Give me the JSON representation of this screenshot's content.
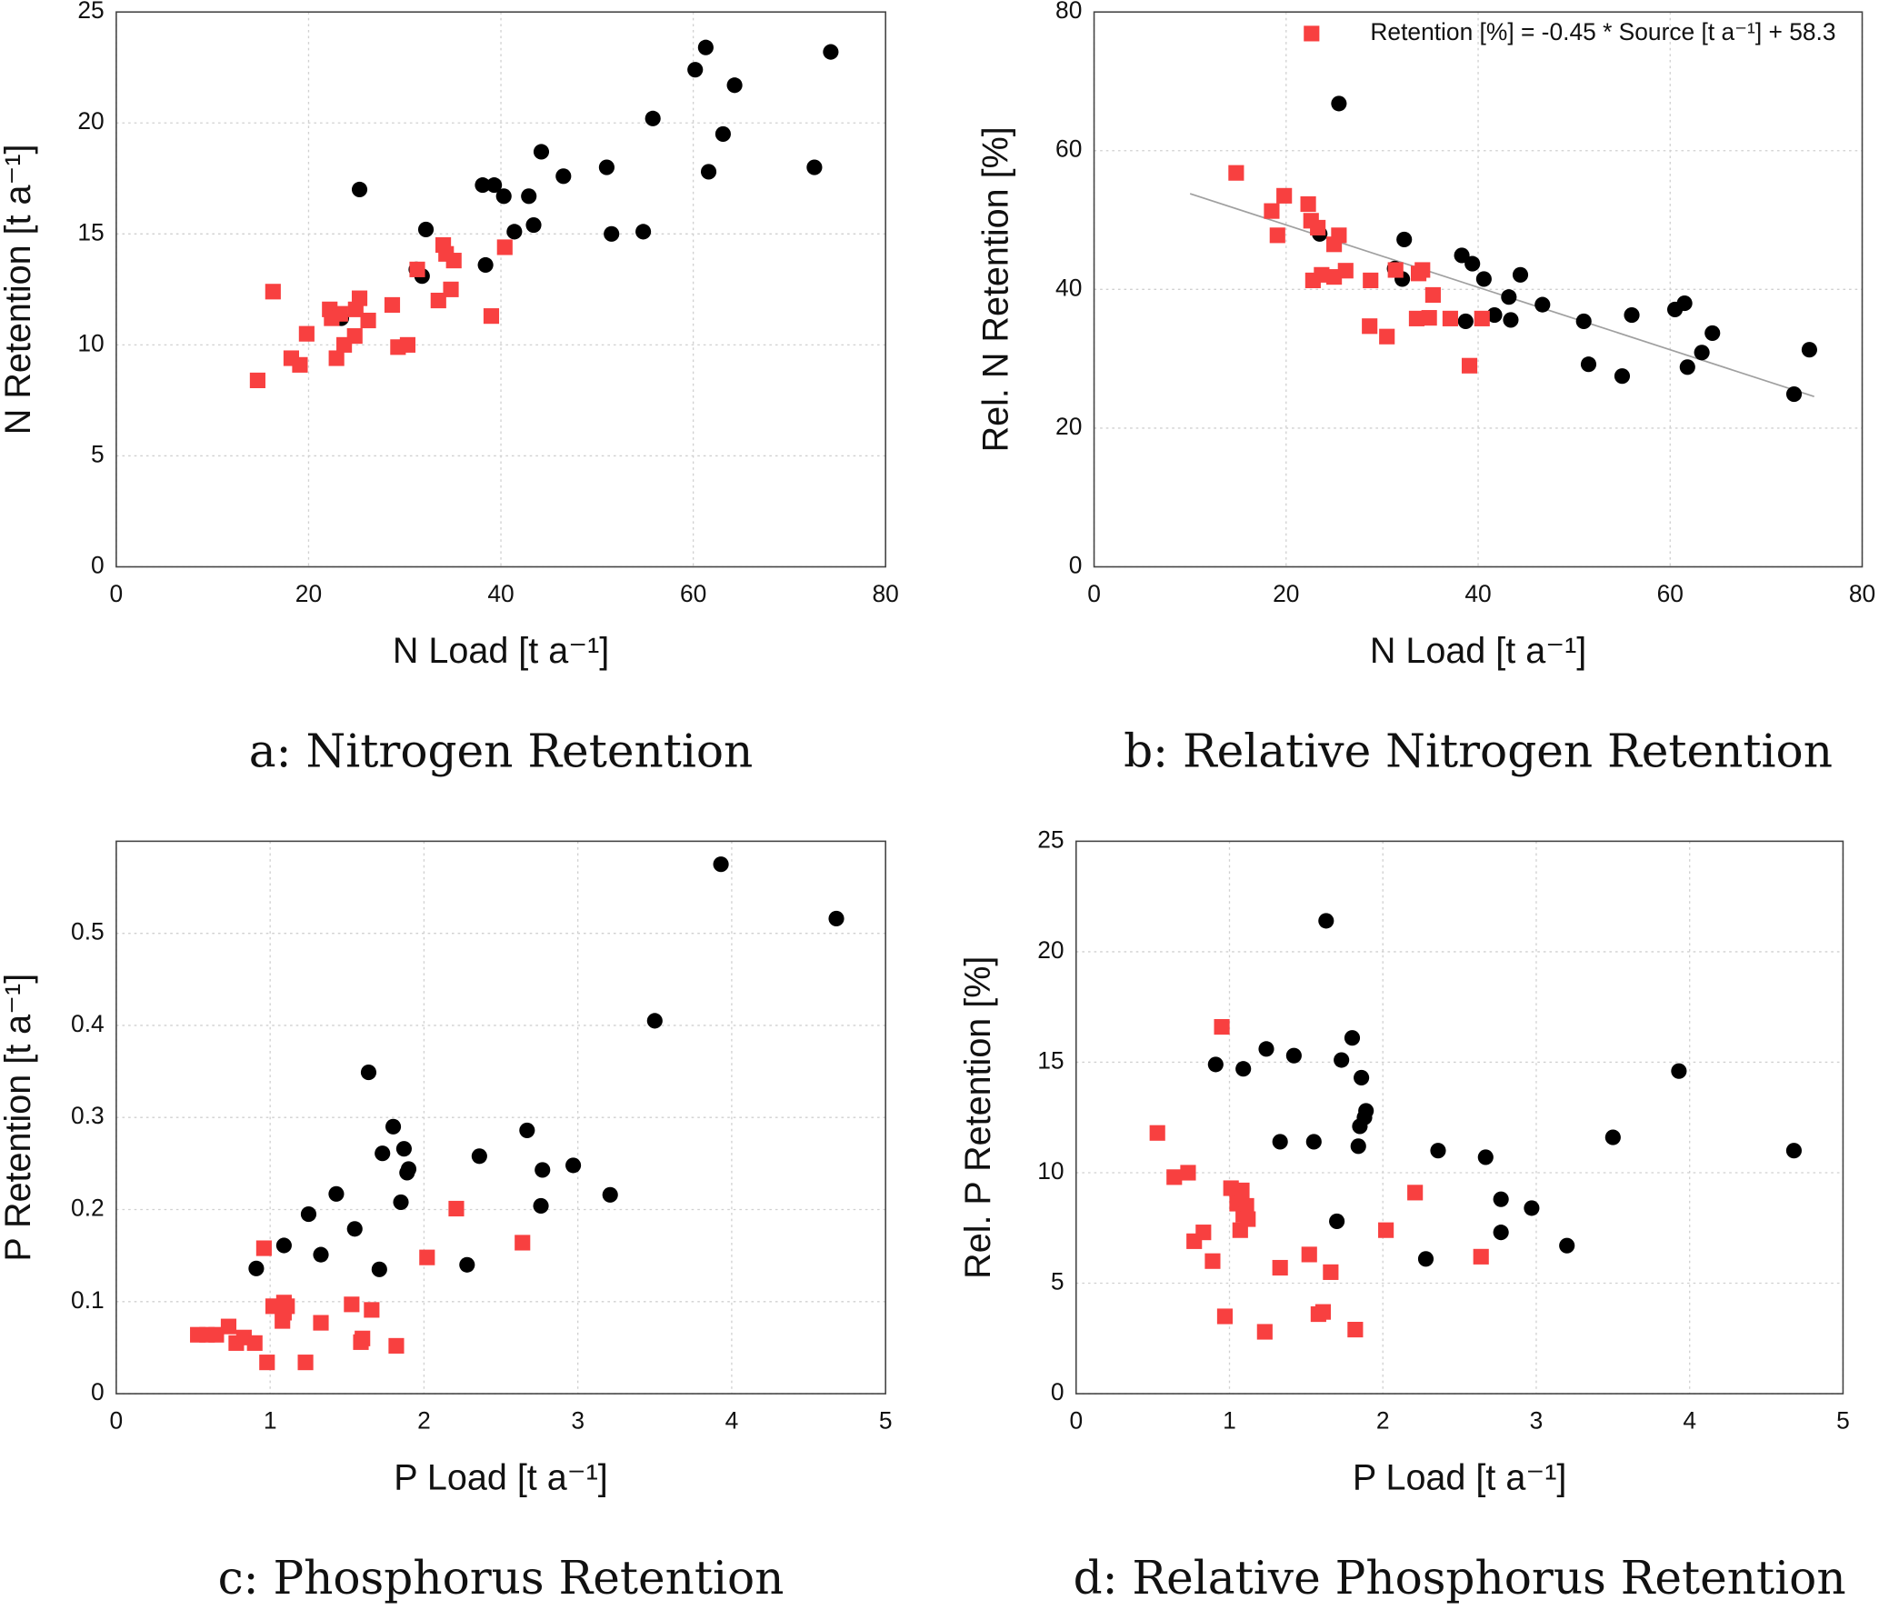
{
  "chart_data": [
    {
      "type": "scatter",
      "caption": "a: Nitrogen Retention",
      "xlabel": "N Load [t a⁻¹]",
      "ylabel": "N Retention [t a⁻¹]",
      "xlim": [
        0,
        80
      ],
      "ylim": [
        0,
        25
      ],
      "xticks": [
        0,
        20,
        40,
        60,
        80
      ],
      "yticks": [
        0,
        5,
        10,
        15,
        20,
        25
      ],
      "grid": true,
      "series": [
        {
          "color": "#000000",
          "marker": "circle",
          "x": [
            74.3,
            61.3,
            60.2,
            64.3,
            55.8,
            63.1,
            44.2,
            46.5,
            51.0,
            72.6,
            61.6,
            25.3,
            38.1,
            39.3,
            40.3,
            42.9,
            32.2,
            43.4,
            41.4,
            51.5,
            54.8,
            31.2,
            31.8,
            38.4,
            23.4
          ],
          "values": [
            23.2,
            23.4,
            22.4,
            21.7,
            20.2,
            19.5,
            18.7,
            17.6,
            18.0,
            18.0,
            17.8,
            17.0,
            17.2,
            17.2,
            16.7,
            16.7,
            15.2,
            15.4,
            15.1,
            15.0,
            15.1,
            13.4,
            13.1,
            13.6,
            11.2
          ]
        },
        {
          "color": "#f84040",
          "marker": "square",
          "x": [
            14.7,
            16.3,
            18.2,
            19.1,
            19.8,
            22.2,
            22.4,
            23.3,
            22.9,
            23.7,
            24.8,
            24.9,
            25.3,
            26.2,
            29.3,
            28.7,
            30.3,
            31.3,
            33.5,
            34.0,
            34.3,
            34.8,
            35.1,
            39.0,
            40.4
          ],
          "values": [
            8.4,
            12.4,
            9.4,
            9.1,
            10.5,
            11.6,
            11.2,
            11.4,
            9.4,
            10.0,
            10.4,
            11.6,
            12.1,
            11.1,
            9.9,
            11.8,
            10.0,
            13.4,
            12.0,
            14.5,
            14.1,
            12.5,
            13.8,
            11.3,
            14.4
          ]
        }
      ]
    },
    {
      "type": "scatter",
      "caption": "b: Relative Nitrogen Retention",
      "xlabel": "N Load [t a⁻¹]",
      "ylabel": "Rel. N Retention [%]",
      "xlim": [
        0,
        80
      ],
      "ylim": [
        0,
        80
      ],
      "xticks": [
        0,
        20,
        40,
        60,
        80
      ],
      "yticks": [
        0,
        20,
        40,
        60,
        80
      ],
      "grid": true,
      "legend": "upper right",
      "trendline": {
        "x": [
          10,
          75
        ],
        "y": [
          53.8,
          24.55
        ],
        "color": "#a0a0a0"
      },
      "series": [
        {
          "color": "#000000",
          "marker": "circle",
          "x": [
            25.5,
            32.3,
            23.5,
            31.3,
            32.1,
            38.3,
            39.4,
            40.6,
            44.4,
            43.2,
            46.7,
            41.7,
            38.7,
            43.4,
            51.0,
            56.0,
            60.5,
            61.5,
            64.4,
            63.3,
            61.8,
            51.5,
            55.0,
            74.5,
            72.9
          ],
          "values": [
            66.8,
            47.2,
            48.0,
            43.0,
            41.5,
            44.9,
            43.7,
            41.5,
            42.1,
            38.9,
            37.8,
            36.3,
            35.4,
            35.6,
            35.4,
            36.3,
            37.1,
            38.0,
            33.7,
            30.9,
            28.8,
            29.2,
            27.5,
            31.3,
            24.9
          ]
        },
        {
          "name": "Retention [%] = -0.45 * Source [t a⁻¹] + 58.3",
          "color": "#f84040",
          "marker": "square",
          "x": [
            14.8,
            19.8,
            18.5,
            19.1,
            22.3,
            22.6,
            23.3,
            22.8,
            23.7,
            25.0,
            25.5,
            25.0,
            26.2,
            28.8,
            28.7,
            30.5,
            31.4,
            33.8,
            34.2,
            33.6,
            34.9,
            35.3,
            37.1,
            40.4,
            39.1
          ],
          "values": [
            56.8,
            53.5,
            51.3,
            47.8,
            52.3,
            49.9,
            48.9,
            41.3,
            42.1,
            46.5,
            47.8,
            41.8,
            42.7,
            41.3,
            34.7,
            33.2,
            42.8,
            42.3,
            42.8,
            35.8,
            35.9,
            39.2,
            35.8,
            35.8,
            29.0
          ]
        }
      ]
    },
    {
      "type": "scatter",
      "caption": "c: Phosphorus Retention",
      "xlabel": "P Load [t a⁻¹]",
      "ylabel": "P Retention [t a⁻¹]",
      "xlim": [
        0,
        5
      ],
      "ylim": [
        0,
        0.6
      ],
      "xticks": [
        0,
        1,
        2,
        3,
        4,
        5
      ],
      "yticks": [
        0,
        0.1,
        0.2,
        0.3,
        0.4,
        0.5
      ],
      "grid": true,
      "series": [
        {
          "color": "#000000",
          "marker": "circle",
          "x": [
            3.93,
            4.68,
            3.5,
            1.64,
            1.8,
            2.67,
            1.87,
            1.73,
            2.36,
            1.9,
            1.89,
            2.77,
            2.97,
            1.43,
            3.21,
            1.85,
            2.76,
            1.25,
            1.55,
            1.09,
            1.33,
            0.91,
            1.71,
            2.28
          ],
          "values": [
            0.575,
            0.516,
            0.405,
            0.349,
            0.29,
            0.286,
            0.266,
            0.261,
            0.258,
            0.244,
            0.24,
            0.243,
            0.248,
            0.217,
            0.216,
            0.208,
            0.204,
            0.195,
            0.179,
            0.161,
            0.151,
            0.136,
            0.135,
            0.14
          ]
        },
        {
          "color": "#f84040",
          "marker": "square",
          "x": [
            0.96,
            2.21,
            2.02,
            2.64,
            1.02,
            1.09,
            1.11,
            1.09,
            1.08,
            1.53,
            1.66,
            1.33,
            0.73,
            0.53,
            0.59,
            0.65,
            0.83,
            0.78,
            0.9,
            1.6,
            1.59,
            1.82,
            0.98,
            1.23
          ],
          "values": [
            0.158,
            0.201,
            0.148,
            0.164,
            0.095,
            0.099,
            0.095,
            0.088,
            0.079,
            0.097,
            0.091,
            0.077,
            0.073,
            0.064,
            0.064,
            0.064,
            0.061,
            0.055,
            0.055,
            0.06,
            0.056,
            0.052,
            0.034,
            0.034
          ]
        }
      ]
    },
    {
      "type": "scatter",
      "caption": "d: Relative Phosphorus Retention",
      "xlabel": "P Load [t a⁻¹]",
      "ylabel": "Rel. P Retention [%]",
      "xlim": [
        0,
        5
      ],
      "ylim": [
        0,
        25
      ],
      "xticks": [
        0,
        1,
        2,
        3,
        4,
        5
      ],
      "yticks": [
        0,
        5,
        10,
        15,
        20,
        25
      ],
      "grid": true,
      "series": [
        {
          "color": "#000000",
          "marker": "circle",
          "x": [
            1.63,
            1.8,
            1.24,
            1.42,
            1.73,
            0.91,
            1.09,
            3.93,
            1.86,
            1.89,
            1.88,
            1.85,
            3.5,
            1.33,
            1.55,
            1.84,
            4.68,
            2.36,
            2.67,
            2.77,
            2.97,
            1.7,
            2.77,
            3.2,
            2.28
          ],
          "values": [
            21.4,
            16.1,
            15.6,
            15.3,
            15.1,
            14.9,
            14.7,
            14.6,
            14.3,
            12.8,
            12.5,
            12.1,
            11.6,
            11.4,
            11.4,
            11.2,
            11.0,
            11.0,
            10.7,
            8.8,
            8.4,
            7.8,
            7.3,
            6.7,
            6.1
          ]
        },
        {
          "color": "#f84040",
          "marker": "square",
          "x": [
            0.95,
            0.53,
            0.64,
            0.73,
            1.01,
            1.08,
            1.05,
            1.11,
            1.09,
            1.12,
            2.21,
            2.02,
            0.83,
            0.77,
            1.07,
            0.89,
            1.33,
            1.52,
            2.64,
            1.66,
            1.61,
            1.58,
            0.97,
            1.23,
            1.82
          ],
          "values": [
            16.6,
            11.8,
            9.8,
            10.0,
            9.3,
            9.2,
            8.6,
            8.5,
            8.1,
            7.9,
            9.1,
            7.4,
            7.3,
            6.9,
            7.4,
            6.0,
            5.7,
            6.3,
            6.2,
            5.5,
            3.7,
            3.6,
            3.5,
            2.8,
            2.9
          ]
        }
      ]
    }
  ]
}
